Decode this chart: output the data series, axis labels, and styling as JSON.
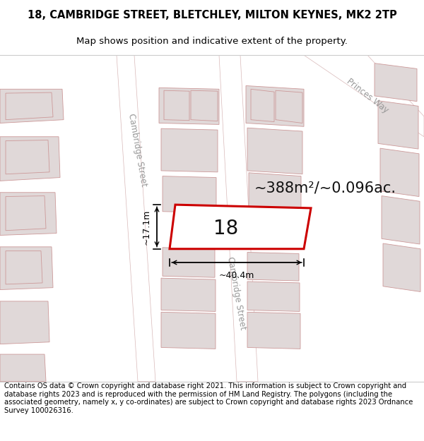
{
  "title_line1": "18, CAMBRIDGE STREET, BLETCHLEY, MILTON KEYNES, MK2 2TP",
  "title_line2": "Map shows position and indicative extent of the property.",
  "footer_text": "Contains OS data © Crown copyright and database right 2021. This information is subject to Crown copyright and database rights 2023 and is reproduced with the permission of HM Land Registry. The polygons (including the associated geometry, namely x, y co-ordinates) are subject to Crown copyright and database rights 2023 Ordnance Survey 100026316.",
  "area_label": "~388m²/~0.096ac.",
  "width_label": "~40.4m",
  "height_label": "~17.1m",
  "number_label": "18",
  "background_color": "#ffffff",
  "map_bg": "#f2eeee",
  "road_fill": "#ffffff",
  "road_edge": "#d8b8b8",
  "block_fill": "#e0d8d8",
  "block_edge": "#cc9999",
  "block_edge_lw": 0.6,
  "property_fill": "#ffffff",
  "property_edge": "#cc0000",
  "property_lw": 2.2,
  "road_label_color": "#999999",
  "dim_color": "#000000",
  "title_fontsize": 10.5,
  "subtitle_fontsize": 9.5,
  "footer_fontsize": 7.2,
  "area_fontsize": 15,
  "number_fontsize": 20,
  "dim_fontsize": 9,
  "street_fontsize": 8.5,
  "princes_fontsize": 8.5
}
